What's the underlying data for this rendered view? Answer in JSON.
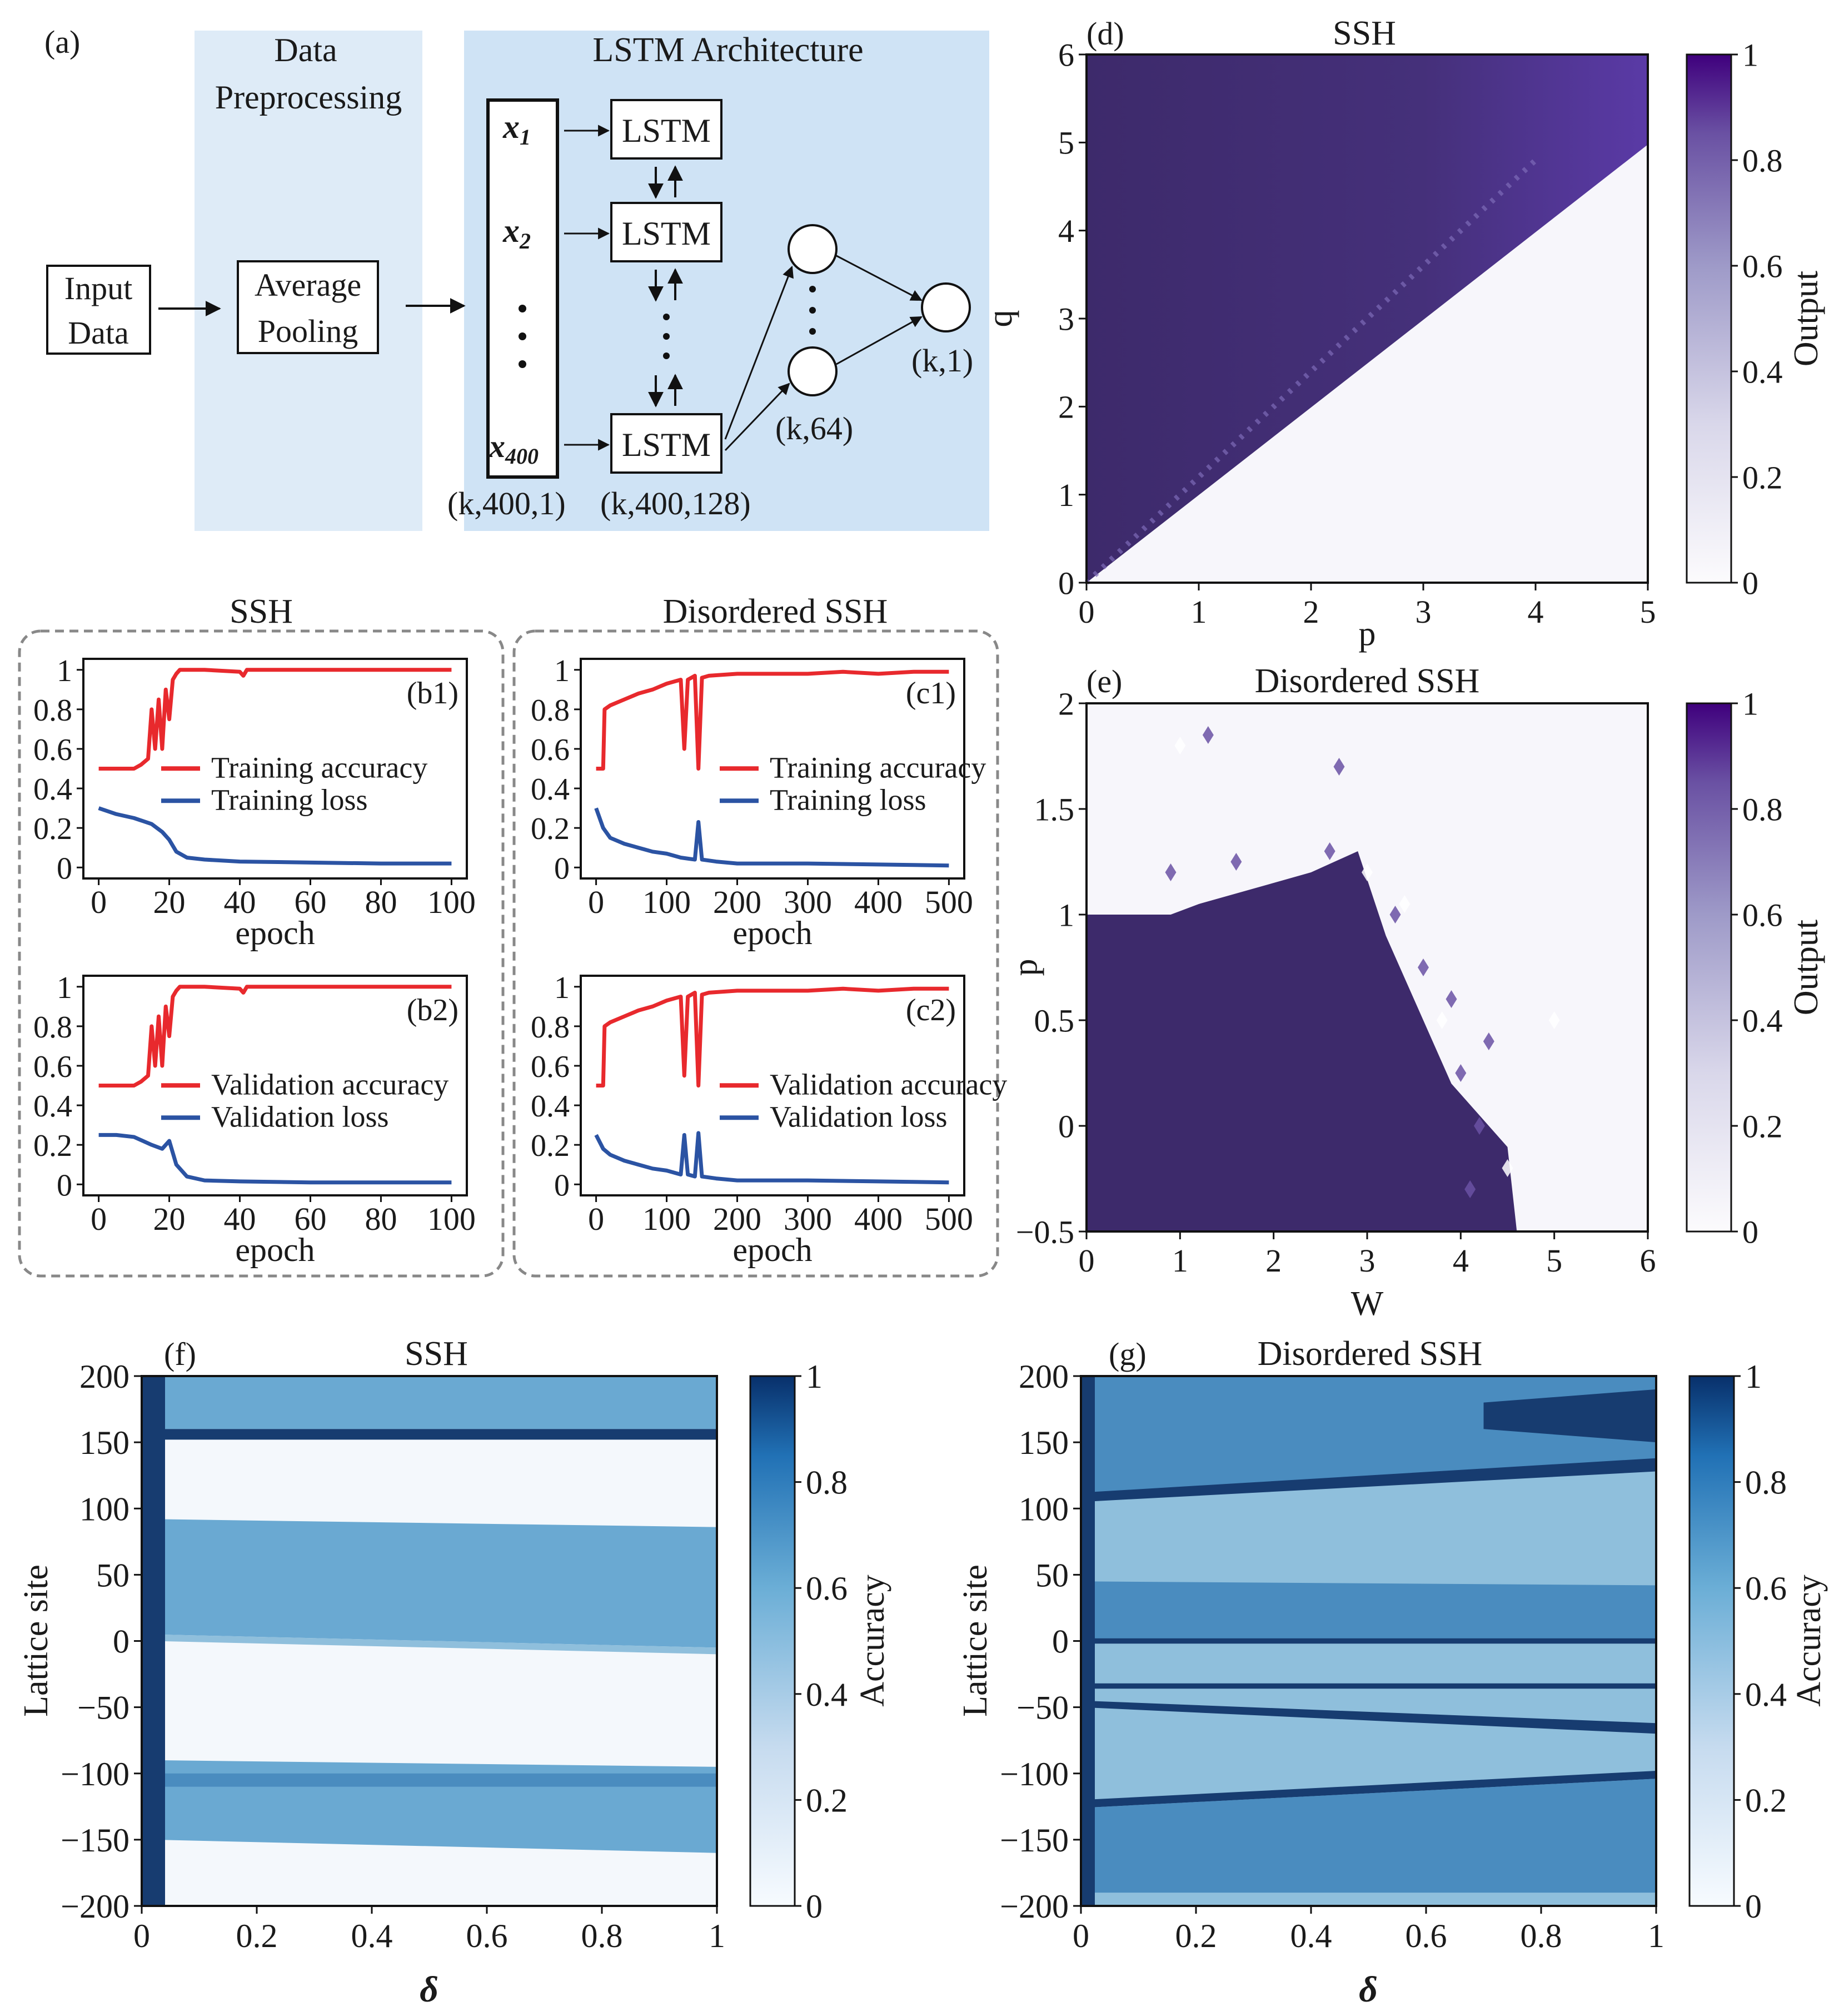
{
  "colors": {
    "purple_dark": "#3d2a6b",
    "purple_mid": "#5b3ea8",
    "blue_dark": "#173c70",
    "blue_mid": "#4a8cbf",
    "blue_light": "#8fbfdc",
    "red": "#e8292d",
    "loss_blue": "#2b53a3",
    "panel_bg": "#cfe3f5",
    "panel_bg_light": "#deebf7"
  },
  "panel_a": {
    "label": "(a)",
    "input": [
      "Input",
      "Data"
    ],
    "preprocess_title": [
      "Data",
      "Preprocessing"
    ],
    "pooling": [
      "Average",
      "Pooling"
    ],
    "lstm_title": "LSTM Architecture",
    "x_labels": [
      "x",
      "x",
      "x"
    ],
    "x_subs": [
      "1",
      "2",
      "400"
    ],
    "lstm_label": "LSTM",
    "shape_input": "(k,400,1)",
    "shape_lstm": "(k,400,128)",
    "shape_dense": "(k,64)",
    "shape_out": "(k,1)"
  },
  "chart_data": [
    {
      "id": "b1",
      "type": "line",
      "label": "(b1)",
      "group_title": "SSH",
      "xlabel": "epoch",
      "xlim": [
        0,
        100
      ],
      "ylim": [
        0,
        1
      ],
      "xticks": [
        "0",
        "20",
        "40",
        "60",
        "80",
        "100"
      ],
      "yticks": [
        "0",
        "0.2",
        "0.4",
        "0.6",
        "0.8",
        "1"
      ],
      "series": [
        {
          "name": "Training accuracy",
          "x": [
            0,
            5,
            10,
            12,
            14,
            15,
            16,
            17,
            18,
            19,
            20,
            21,
            22,
            23,
            25,
            30,
            40,
            41,
            42,
            60,
            80,
            100
          ],
          "values": [
            0.5,
            0.5,
            0.5,
            0.52,
            0.55,
            0.8,
            0.6,
            0.85,
            0.6,
            0.9,
            0.75,
            0.95,
            0.98,
            1.0,
            1.0,
            1.0,
            0.99,
            0.97,
            1.0,
            1.0,
            1.0,
            1.0
          ]
        },
        {
          "name": "Training loss",
          "x": [
            0,
            5,
            10,
            15,
            18,
            20,
            22,
            25,
            30,
            40,
            60,
            80,
            100
          ],
          "values": [
            0.3,
            0.27,
            0.25,
            0.22,
            0.18,
            0.14,
            0.08,
            0.05,
            0.04,
            0.03,
            0.025,
            0.02,
            0.02
          ]
        }
      ]
    },
    {
      "id": "c1",
      "type": "line",
      "label": "(c1)",
      "group_title": "Disordered SSH",
      "xlabel": "epoch",
      "xlim": [
        0,
        500
      ],
      "ylim": [
        0,
        1
      ],
      "xticks": [
        "0",
        "100",
        "200",
        "300",
        "400",
        "500"
      ],
      "yticks": [
        "0",
        "0.2",
        "0.4",
        "0.6",
        "0.8",
        "1"
      ],
      "series": [
        {
          "name": "Training accuracy",
          "x": [
            0,
            10,
            12,
            20,
            40,
            60,
            80,
            100,
            120,
            125,
            130,
            140,
            145,
            150,
            160,
            200,
            250,
            300,
            350,
            400,
            450,
            500
          ],
          "values": [
            0.5,
            0.5,
            0.8,
            0.82,
            0.85,
            0.88,
            0.9,
            0.93,
            0.95,
            0.6,
            0.95,
            0.97,
            0.5,
            0.96,
            0.97,
            0.98,
            0.98,
            0.98,
            0.99,
            0.98,
            0.99,
            0.99
          ]
        },
        {
          "name": "Training loss",
          "x": [
            0,
            10,
            20,
            40,
            60,
            80,
            100,
            120,
            140,
            145,
            150,
            170,
            200,
            300,
            400,
            500
          ],
          "values": [
            0.3,
            0.2,
            0.15,
            0.12,
            0.1,
            0.08,
            0.07,
            0.05,
            0.04,
            0.23,
            0.04,
            0.03,
            0.02,
            0.02,
            0.015,
            0.01
          ]
        }
      ]
    },
    {
      "id": "b2",
      "type": "line",
      "label": "(b2)",
      "xlabel": "epoch",
      "xlim": [
        0,
        100
      ],
      "ylim": [
        0,
        1
      ],
      "xticks": [
        "0",
        "20",
        "40",
        "60",
        "80",
        "100"
      ],
      "yticks": [
        "0",
        "0.2",
        "0.4",
        "0.6",
        "0.8",
        "1"
      ],
      "series": [
        {
          "name": "Validation accuracy",
          "x": [
            0,
            5,
            10,
            12,
            14,
            15,
            16,
            17,
            18,
            19,
            20,
            21,
            22,
            23,
            25,
            30,
            40,
            41,
            42,
            60,
            80,
            100
          ],
          "values": [
            0.5,
            0.5,
            0.5,
            0.52,
            0.55,
            0.8,
            0.6,
            0.85,
            0.6,
            0.9,
            0.75,
            0.95,
            0.98,
            1.0,
            1.0,
            1.0,
            0.99,
            0.97,
            1.0,
            1.0,
            1.0,
            1.0
          ]
        },
        {
          "name": "Validation loss",
          "x": [
            0,
            5,
            10,
            15,
            18,
            20,
            22,
            25,
            30,
            40,
            60,
            80,
            100
          ],
          "values": [
            0.25,
            0.25,
            0.24,
            0.2,
            0.18,
            0.22,
            0.1,
            0.04,
            0.02,
            0.015,
            0.01,
            0.01,
            0.01
          ]
        }
      ]
    },
    {
      "id": "c2",
      "type": "line",
      "label": "(c2)",
      "xlabel": "epoch",
      "xlim": [
        0,
        500
      ],
      "ylim": [
        0,
        1
      ],
      "xticks": [
        "0",
        "100",
        "200",
        "300",
        "400",
        "500"
      ],
      "yticks": [
        "0",
        "0.2",
        "0.4",
        "0.6",
        "0.8",
        "1"
      ],
      "series": [
        {
          "name": "Validation accuracy",
          "x": [
            0,
            10,
            12,
            20,
            40,
            60,
            80,
            100,
            120,
            125,
            130,
            140,
            145,
            150,
            160,
            200,
            250,
            300,
            350,
            400,
            450,
            500
          ],
          "values": [
            0.5,
            0.5,
            0.8,
            0.82,
            0.85,
            0.88,
            0.9,
            0.93,
            0.95,
            0.55,
            0.95,
            0.97,
            0.5,
            0.96,
            0.97,
            0.98,
            0.98,
            0.98,
            0.99,
            0.98,
            0.99,
            0.99
          ]
        },
        {
          "name": "Validation loss",
          "x": [
            0,
            10,
            20,
            40,
            60,
            80,
            100,
            120,
            125,
            130,
            140,
            145,
            150,
            170,
            200,
            300,
            400,
            500
          ],
          "values": [
            0.25,
            0.18,
            0.15,
            0.12,
            0.1,
            0.08,
            0.07,
            0.05,
            0.25,
            0.05,
            0.04,
            0.26,
            0.04,
            0.03,
            0.02,
            0.02,
            0.015,
            0.01
          ]
        }
      ]
    },
    {
      "id": "d",
      "type": "heatmap",
      "label": "(d)",
      "title": "SSH",
      "xlabel": "p",
      "ylabel": "q",
      "xlim": [
        0,
        5
      ],
      "ylim": [
        0,
        6
      ],
      "xticks": [
        "0",
        "1",
        "2",
        "3",
        "4",
        "5"
      ],
      "yticks": [
        "0",
        "1",
        "2",
        "3",
        "4",
        "5",
        "6"
      ],
      "boundary": "q = p",
      "colorbar": {
        "label": "Output",
        "ticks": [
          "0",
          "0.2",
          "0.4",
          "0.6",
          "0.8",
          "1"
        ]
      }
    },
    {
      "id": "e",
      "type": "heatmap",
      "label": "(e)",
      "title": "Disordered SSH",
      "xlabel": "W",
      "ylabel": "p",
      "xlim": [
        0,
        6
      ],
      "ylim": [
        -0.5,
        2
      ],
      "xticks": [
        "0",
        "1",
        "2",
        "3",
        "4",
        "5",
        "6"
      ],
      "yticks": [
        "−0.5",
        "0",
        "0.5",
        "1",
        "1.5",
        "2"
      ],
      "colorbar": {
        "label": "Output",
        "ticks": [
          "0",
          "0.2",
          "0.4",
          "0.6",
          "0.8",
          "1"
        ]
      }
    },
    {
      "id": "f",
      "type": "heatmap",
      "label": "(f)",
      "title": "SSH",
      "xlabel": "δ",
      "ylabel": "Lattice site",
      "xlim": [
        0,
        1
      ],
      "ylim": [
        -200,
        200
      ],
      "xticks": [
        "0",
        "0.2",
        "0.4",
        "0.6",
        "0.8",
        "1"
      ],
      "yticks": [
        "−200",
        "−150",
        "−100",
        "−50",
        "0",
        "50",
        "100",
        "150",
        "200"
      ],
      "colorbar": {
        "label": "Accuracy",
        "ticks": [
          "0",
          "0.2",
          "0.4",
          "0.6",
          "0.8",
          "1"
        ]
      }
    },
    {
      "id": "g",
      "type": "heatmap",
      "label": "(g)",
      "title": "Disordered SSH",
      "xlabel": "δ",
      "ylabel": "Lattice site",
      "xlim": [
        0,
        1
      ],
      "ylim": [
        -200,
        200
      ],
      "xticks": [
        "0",
        "0.2",
        "0.4",
        "0.6",
        "0.8",
        "1"
      ],
      "yticks": [
        "−200",
        "−150",
        "−100",
        "−50",
        "0",
        "50",
        "100",
        "150",
        "200"
      ],
      "colorbar": {
        "label": "Accuracy",
        "ticks": [
          "0",
          "0.2",
          "0.4",
          "0.6",
          "0.8",
          "1"
        ]
      }
    }
  ]
}
